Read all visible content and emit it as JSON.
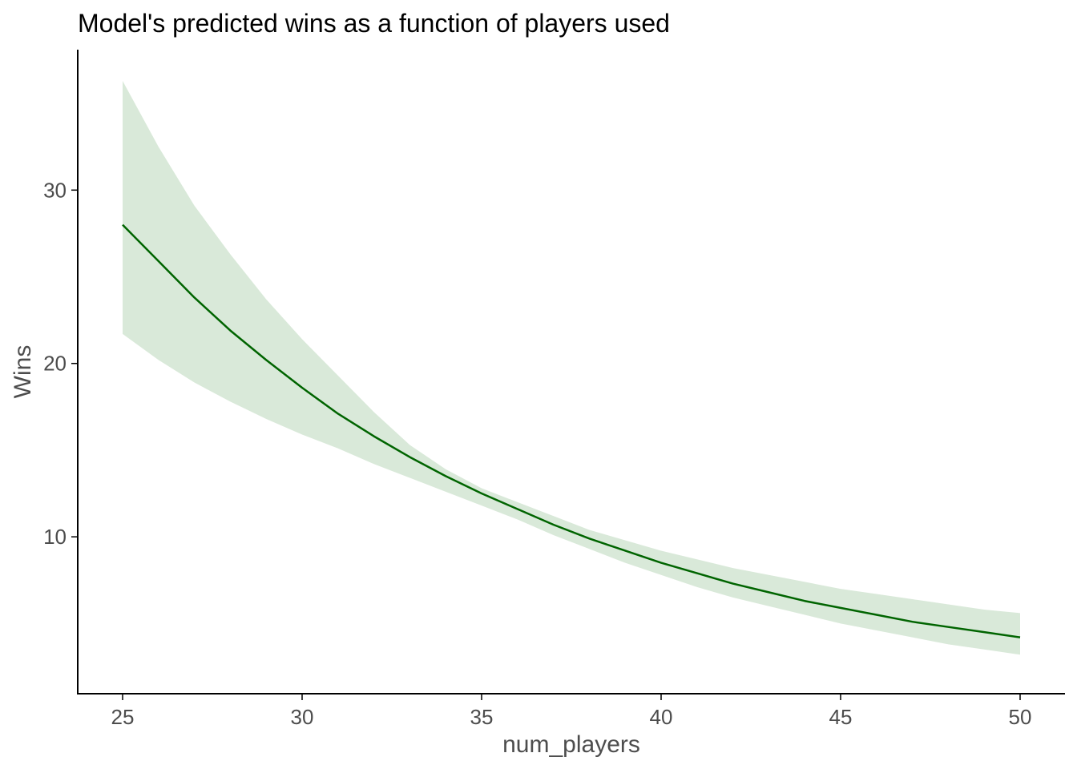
{
  "chart_data": {
    "type": "line",
    "title": "Model's predicted wins as a function of players used",
    "xlabel": "num_players",
    "ylabel": "Wins",
    "xlim": [
      23.75,
      51.25
    ],
    "ylim": [
      0.95,
      38.1
    ],
    "x_ticks": [
      25,
      30,
      35,
      40,
      45,
      50
    ],
    "y_ticks": [
      10,
      20,
      30
    ],
    "grid": false,
    "legend": "none",
    "colors": {
      "line": "#006400",
      "band": "#d9e9d9",
      "axis": "#000000"
    },
    "series": [
      {
        "x": [
          25,
          26,
          27,
          28,
          29,
          30,
          31,
          32,
          33,
          34,
          35,
          36,
          37,
          38,
          39,
          40,
          41,
          42,
          43,
          44,
          45,
          46,
          47,
          48,
          49,
          50
        ],
        "y": [
          28.0,
          25.9,
          23.8,
          21.9,
          20.2,
          18.6,
          17.1,
          15.8,
          14.6,
          13.5,
          12.5,
          11.6,
          10.7,
          9.9,
          9.2,
          8.5,
          7.9,
          7.3,
          6.8,
          6.3,
          5.9,
          5.5,
          5.1,
          4.8,
          4.5,
          4.2
        ],
        "lower": [
          21.7,
          20.2,
          18.9,
          17.8,
          16.8,
          15.9,
          15.1,
          14.2,
          13.4,
          12.6,
          11.8,
          11.0,
          10.1,
          9.3,
          8.5,
          7.8,
          7.1,
          6.5,
          6.0,
          5.5,
          5.0,
          4.6,
          4.2,
          3.8,
          3.5,
          3.2
        ],
        "upper": [
          36.3,
          32.5,
          29.1,
          26.3,
          23.7,
          21.4,
          19.3,
          17.2,
          15.3,
          13.9,
          12.8,
          12.0,
          11.2,
          10.4,
          9.8,
          9.2,
          8.7,
          8.2,
          7.8,
          7.4,
          7.0,
          6.7,
          6.4,
          6.1,
          5.8,
          5.6
        ]
      }
    ]
  }
}
